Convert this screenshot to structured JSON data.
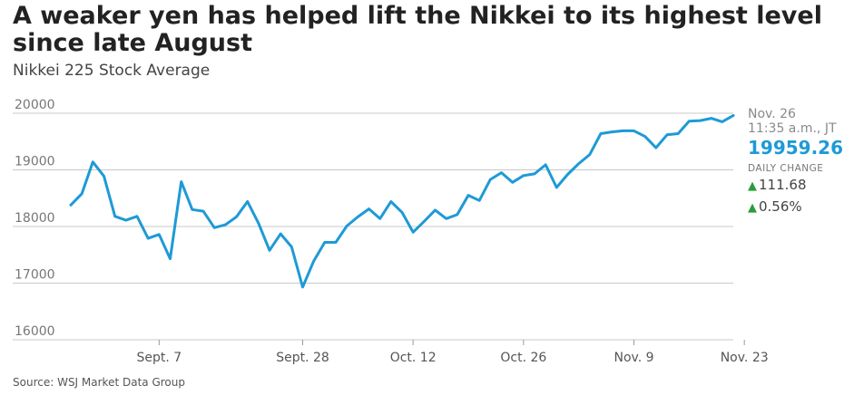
{
  "header": {
    "title": "A weaker yen has helped lift the Nikkei to its highest level since late August",
    "subtitle": "Nikkei 225 Stock Average"
  },
  "sidebar": {
    "date": "Nov. 26",
    "time": "11:35 a.m., JT",
    "last_value": "19959.26",
    "daily_change_label": "DAILY CHANGE",
    "change_points": "111.68",
    "change_percent": "0.56%",
    "up_arrow": "▲"
  },
  "source": "Source: WSJ Market Data Group",
  "colors": {
    "line": "#1e9ad6",
    "grid": "#c8c8c8",
    "up": "#2a9d3a"
  },
  "chart_data": {
    "type": "line",
    "title": "A weaker yen has helped lift the Nikkei to its highest level since late August",
    "subtitle": "Nikkei 225 Stock Average",
    "xlabel": "",
    "ylabel": "",
    "ylim": [
      16000,
      20000
    ],
    "yticks": [
      20000,
      19000,
      18000,
      17000,
      16000
    ],
    "xticks": [
      {
        "label": "Sept. 7",
        "index": 8
      },
      {
        "label": "Sept. 28",
        "index": 21
      },
      {
        "label": "Oct. 12",
        "index": 31
      },
      {
        "label": "Oct. 26",
        "index": 41
      },
      {
        "label": "Nov. 9",
        "index": 51
      },
      {
        "label": "Nov. 23",
        "index": 61
      }
    ],
    "grid": true,
    "series": [
      {
        "values": [
          18380,
          18580,
          19140,
          18890,
          18180,
          18110,
          18180,
          17790,
          17860,
          17430,
          18790,
          18300,
          18270,
          17980,
          18030,
          18170,
          18440,
          18060,
          17580,
          17870,
          17640,
          16930,
          17390,
          17720,
          17720,
          18010,
          18170,
          18310,
          18140,
          18440,
          18250,
          17900,
          18090,
          18290,
          18140,
          18210,
          18550,
          18460,
          18830,
          18950,
          18780,
          18900,
          18930,
          19090,
          18690,
          18920,
          19110,
          19270,
          19640,
          19670,
          19690,
          19690,
          19590,
          19390,
          19620,
          19640,
          19860,
          19870,
          19910,
          19850,
          19959.26
        ]
      }
    ]
  }
}
